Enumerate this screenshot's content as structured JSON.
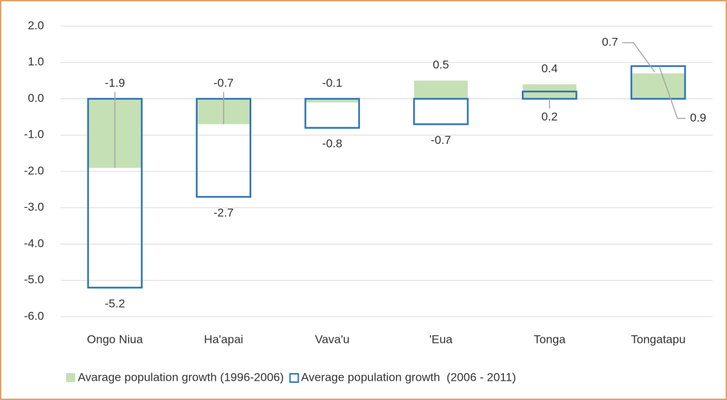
{
  "chart_data": {
    "type": "bar",
    "categories": [
      "Ongo Niua",
      "Ha'apai",
      "Vava'u",
      "'Eua",
      "Tonga",
      "Tongatapu"
    ],
    "series": [
      {
        "name": "Avarage population growth (1996-2006)",
        "color": "#c5e0b4",
        "values": [
          -1.9,
          -0.7,
          -0.1,
          0.5,
          0.4,
          0.7
        ]
      },
      {
        "name": "Average population growth  (2006 - 2011)",
        "color": "#2e75b6",
        "values": [
          -5.2,
          -2.7,
          -0.8,
          -0.7,
          0.2,
          0.9
        ]
      }
    ],
    "ylim": [
      -6,
      2
    ],
    "yticks": [
      {
        "value": 2,
        "label": "2.0"
      },
      {
        "value": 1,
        "label": "1.0"
      },
      {
        "value": 0,
        "label": "0.0"
      },
      {
        "value": -1,
        "label": "-1.0"
      },
      {
        "value": -2,
        "label": "-2.0"
      },
      {
        "value": -3,
        "label": "-3.0"
      },
      {
        "value": -4,
        "label": "-4.0"
      },
      {
        "value": -5,
        "label": "-5.0"
      },
      {
        "value": -6,
        "label": "-6.0"
      }
    ],
    "grid": true,
    "legend": "bottom"
  }
}
